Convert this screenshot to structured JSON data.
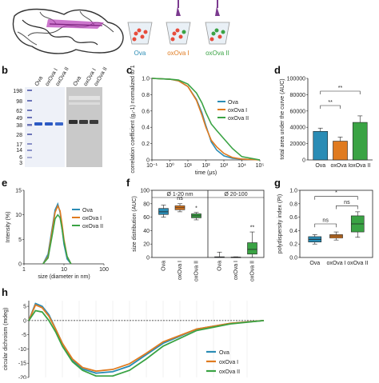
{
  "colors": {
    "ova": "#2a8cb5",
    "oxova1": "#e07b20",
    "oxova2": "#3aa344"
  },
  "top": {
    "tube_labels": [
      "Ova",
      "oxOva I",
      "oxOva II"
    ]
  },
  "panel_labels": {
    "b": "b",
    "c": "c",
    "d": "d",
    "e": "e",
    "f": "f",
    "g": "g",
    "h": "h"
  },
  "panel_b": {
    "lane_labels": [
      "Ova",
      "oxOva I",
      "oxOva II",
      "Ova",
      "oxOva I",
      "oxOva II"
    ],
    "mw_markers": [
      "198",
      "98",
      "62",
      "49",
      "38",
      "28",
      "17",
      "14",
      "6",
      "3"
    ]
  },
  "chart_data": [
    {
      "panel": "c",
      "type": "line",
      "xlabel": "time (μs)",
      "ylabel": "correlation coefficient (g₂-1) normalized to 1",
      "xscale": "log",
      "xlim": [
        0.1,
        100000
      ],
      "ylim": [
        0,
        1.0
      ],
      "x_ticks": [
        "10⁻¹",
        "10⁰",
        "10¹",
        "10²",
        "10³",
        "10⁴",
        "10⁵"
      ],
      "y_ticks": [
        "0",
        "0.2",
        "0.4",
        "0.6",
        "0.8",
        "1.0"
      ],
      "series": [
        {
          "name": "Ova",
          "x": [
            0.1,
            1,
            3,
            10,
            30,
            60,
            100,
            200,
            400,
            1000,
            3000,
            10000,
            100000
          ],
          "y": [
            1.0,
            0.99,
            0.97,
            0.9,
            0.74,
            0.58,
            0.42,
            0.22,
            0.12,
            0.05,
            0.02,
            0.01,
            0.0
          ]
        },
        {
          "name": "oxOva I",
          "x": [
            0.1,
            1,
            3,
            10,
            30,
            60,
            100,
            200,
            400,
            1000,
            3000,
            10000,
            100000
          ],
          "y": [
            1.0,
            0.99,
            0.97,
            0.9,
            0.73,
            0.55,
            0.4,
            0.24,
            0.16,
            0.08,
            0.03,
            0.01,
            0.0
          ]
        },
        {
          "name": "oxOva II",
          "x": [
            0.1,
            1,
            3,
            10,
            30,
            60,
            100,
            200,
            400,
            1000,
            3000,
            10000,
            100000
          ],
          "y": [
            1.0,
            0.99,
            0.98,
            0.93,
            0.82,
            0.7,
            0.58,
            0.44,
            0.36,
            0.26,
            0.14,
            0.04,
            0.0
          ]
        }
      ]
    },
    {
      "panel": "d",
      "type": "bar",
      "ylabel": "total area under the curve (AUC)",
      "categories": [
        "Ova",
        "oxOva I",
        "oxOva II"
      ],
      "values": [
        35000,
        23000,
        46000
      ],
      "errors": [
        4000,
        5000,
        8000
      ],
      "ylim": [
        0,
        100000
      ],
      "y_ticks": [
        "0",
        "20000",
        "40000",
        "60000",
        "80000",
        "100000"
      ],
      "significance": [
        "**",
        "**"
      ]
    },
    {
      "panel": "e",
      "type": "line",
      "xlabel": "size (diameter in nm)",
      "ylabel": "Intensity (%)",
      "xscale": "log",
      "xlim": [
        1,
        100
      ],
      "ylim": [
        0,
        15
      ],
      "x_ticks": [
        "1",
        "10",
        "100"
      ],
      "y_ticks": [
        "0",
        "5",
        "10",
        "15"
      ],
      "series": [
        {
          "name": "Ova",
          "x": [
            3,
            4,
            5,
            6,
            7,
            8,
            9,
            10,
            12,
            15
          ],
          "y": [
            0,
            2,
            7,
            11,
            12.2,
            10.5,
            7,
            4,
            1,
            0
          ]
        },
        {
          "name": "oxOva I",
          "x": [
            3,
            4,
            5,
            6,
            7,
            8,
            9,
            10,
            12,
            15
          ],
          "y": [
            0,
            1.5,
            6.5,
            10.5,
            11.8,
            10.8,
            8,
            5,
            1.5,
            0
          ]
        },
        {
          "name": "oxOva II",
          "x": [
            3,
            4,
            5,
            6,
            7,
            8,
            9,
            10,
            12,
            15
          ],
          "y": [
            0,
            1.2,
            5.5,
            9.2,
            10,
            9.4,
            7,
            4.5,
            1.5,
            0
          ]
        }
      ]
    },
    {
      "panel": "f",
      "type": "box",
      "ylabel": "size distribution (AUC)",
      "groups": [
        "Ø 1-20 nm",
        "Ø 20-100"
      ],
      "categories": [
        "Ova",
        "oxOva I",
        "oxOva II"
      ],
      "ylim": [
        0,
        100
      ],
      "y_ticks": [
        "0",
        "20",
        "40",
        "60",
        "80",
        "100"
      ],
      "boxes": [
        {
          "group": 0,
          "cat": 0,
          "min": 60,
          "q1": 64,
          "median": 68,
          "q3": 73,
          "max": 78
        },
        {
          "group": 0,
          "cat": 1,
          "min": 68,
          "q1": 71,
          "median": 74,
          "q3": 77,
          "max": 80
        },
        {
          "group": 0,
          "cat": 2,
          "min": 56,
          "q1": 59,
          "median": 62,
          "q3": 65,
          "max": 67
        },
        {
          "group": 1,
          "cat": 0,
          "min": 0,
          "q1": 0,
          "median": 0.5,
          "q3": 1,
          "max": 8
        },
        {
          "group": 1,
          "cat": 1,
          "min": 0,
          "q1": 0,
          "median": 0.3,
          "q3": 0.6,
          "max": 1
        },
        {
          "group": 1,
          "cat": 2,
          "min": 0,
          "q1": 5,
          "median": 12,
          "q3": 22,
          "max": 38
        }
      ],
      "annotations": [
        "ns",
        "*",
        "**"
      ]
    },
    {
      "panel": "g",
      "type": "box",
      "ylabel": "polydispersity index (PI)",
      "categories": [
        "Ova",
        "oxOva I",
        "oxOva II"
      ],
      "ylim": [
        0,
        1.0
      ],
      "y_ticks": [
        "0.0",
        "0.2",
        "0.4",
        "0.6",
        "0.8",
        "1.0"
      ],
      "boxes": [
        {
          "cat": 0,
          "min": 0.2,
          "q1": 0.23,
          "median": 0.27,
          "q3": 0.31,
          "max": 0.34
        },
        {
          "cat": 1,
          "min": 0.26,
          "q1": 0.29,
          "median": 0.32,
          "q3": 0.34,
          "max": 0.38
        },
        {
          "cat": 2,
          "min": 0.3,
          "q1": 0.38,
          "median": 0.5,
          "q3": 0.62,
          "max": 0.68
        }
      ],
      "annotations": [
        "ns",
        "ns",
        "*"
      ]
    },
    {
      "panel": "h",
      "type": "line",
      "ylabel": "circular dichroism (mdeg)",
      "xlim": [
        190,
        260
      ],
      "ylim": [
        -20,
        7
      ],
      "y_ticks": [
        "-20",
        "-15",
        "-10",
        "-5",
        "0",
        "5"
      ],
      "series": [
        {
          "name": "Ova",
          "x": [
            190,
            192,
            194,
            196,
            198,
            200,
            203,
            206,
            210,
            215,
            220,
            225,
            230,
            240,
            250,
            260
          ],
          "y": [
            0,
            6,
            5,
            2,
            -3,
            -8,
            -14,
            -17,
            -18.5,
            -18,
            -16,
            -12,
            -8,
            -3,
            -1,
            0
          ]
        },
        {
          "name": "oxOva I",
          "x": [
            190,
            192,
            194,
            196,
            198,
            200,
            203,
            206,
            210,
            215,
            220,
            225,
            230,
            240,
            250,
            260
          ],
          "y": [
            0,
            5.5,
            4.5,
            1.5,
            -3,
            -8,
            -13.5,
            -16.5,
            -17.8,
            -17.2,
            -15.2,
            -11.5,
            -7.5,
            -3,
            -1,
            0
          ]
        },
        {
          "name": "oxOva II",
          "x": [
            190,
            192,
            194,
            196,
            198,
            200,
            203,
            206,
            210,
            215,
            220,
            225,
            230,
            240,
            250,
            260
          ],
          "y": [
            0,
            3.5,
            3,
            0,
            -4,
            -9,
            -14.5,
            -17.5,
            -19.5,
            -19.5,
            -17.5,
            -13.5,
            -9,
            -3.5,
            -1.2,
            0
          ]
        }
      ]
    }
  ]
}
